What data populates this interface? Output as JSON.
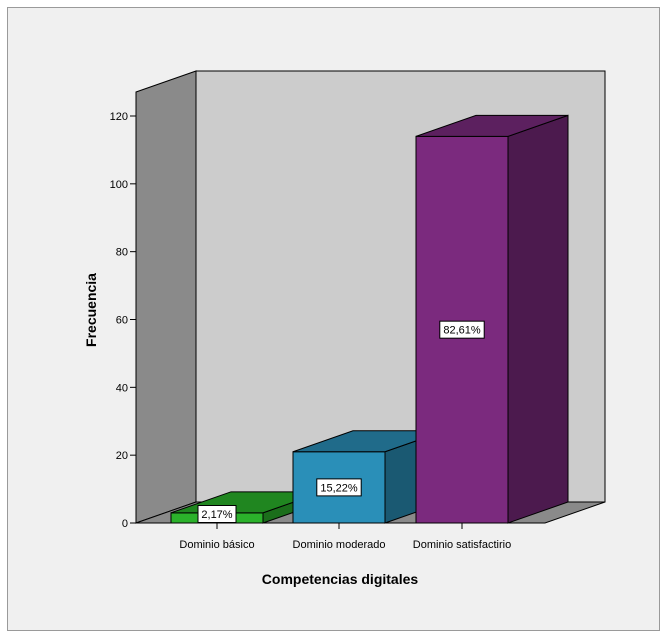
{
  "chart_data": {
    "type": "bar",
    "categories": [
      "Dominio básico",
      "Dominio moderado",
      "Dominio satisfactirio"
    ],
    "values": [
      3,
      21,
      114
    ],
    "data_labels": [
      "2,17%",
      "15,22%",
      "82,61%"
    ],
    "colors": [
      "#2bb22b",
      "#2a8fb8",
      "#7b2a7e"
    ],
    "xlabel": "Competencias  digitales",
    "ylabel": "Frecuencia",
    "ylim": [
      0,
      120
    ],
    "yticks": [
      0,
      20,
      40,
      60,
      80,
      100,
      120
    ],
    "grid": false,
    "style": "3d"
  }
}
